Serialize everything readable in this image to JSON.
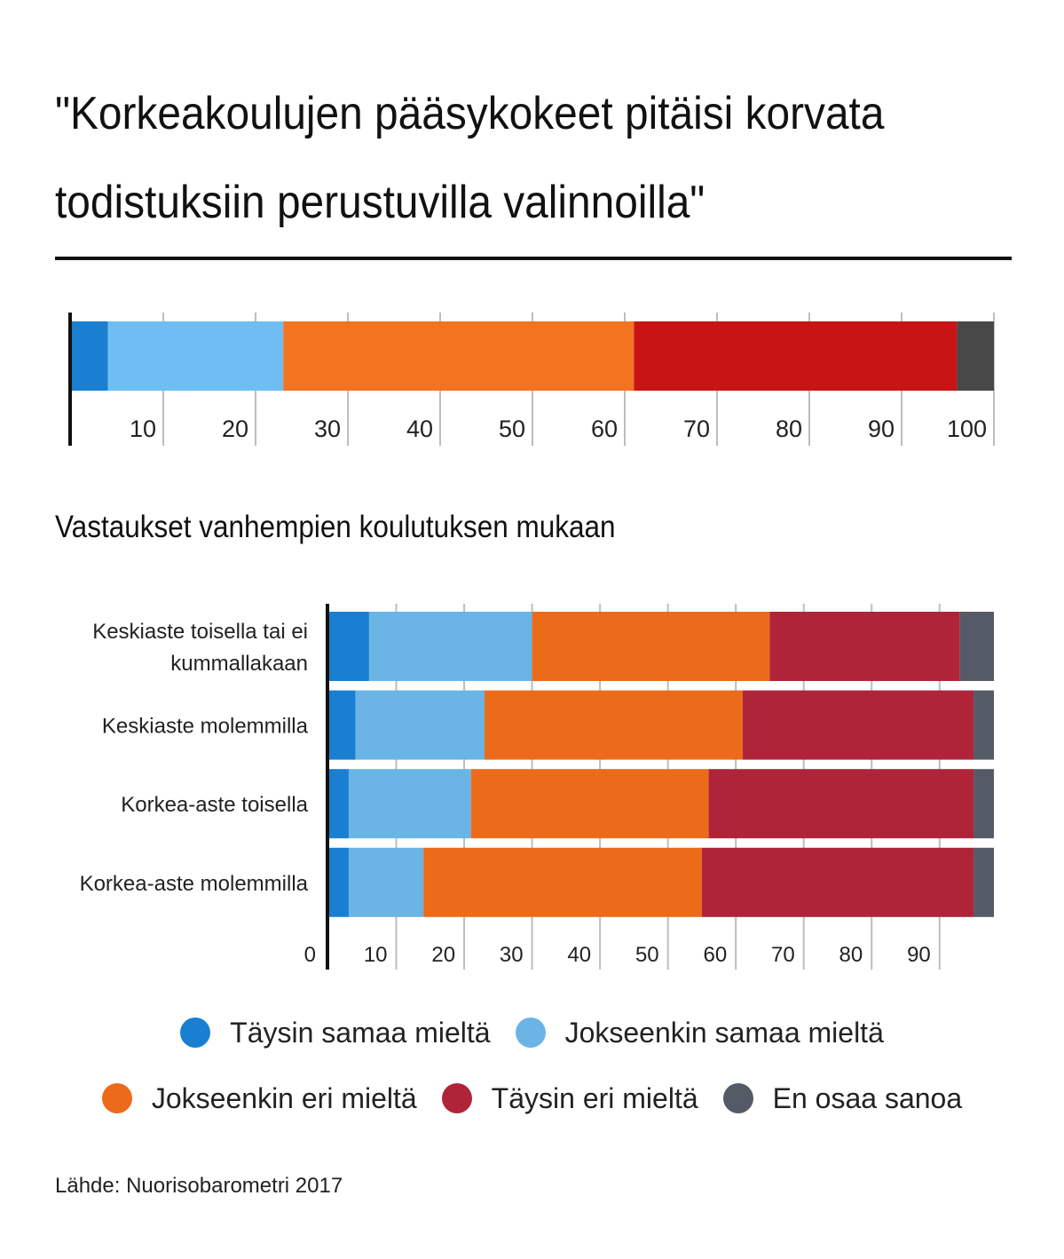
{
  "title": "\"Korkeakoulujen pääsykokeet pitäisi korvata todistuksiin perustuvilla valinnoilla\"",
  "subtitle": "Vastaukset vanhempien koulutuksen mukaan",
  "source": "Lähde: Nuorisobarometri 2017",
  "legend": {
    "row1": [
      {
        "label": "Täysin samaa mieltä",
        "color": "#1a7fd0"
      },
      {
        "label": "Jokseenkin samaa mieltä",
        "color": "#6ab4e6"
      }
    ],
    "row2": [
      {
        "label": "Jokseenkin eri mieltä",
        "color": "#ec6b1b"
      },
      {
        "label": "Täysin eri mieltä",
        "color": "#b0243a"
      },
      {
        "label": "En osaa sanoa",
        "color": "#555b66"
      }
    ]
  },
  "chart_data": [
    {
      "type": "bar",
      "orientation": "horizontal",
      "stacked": true,
      "categories": [
        ""
      ],
      "series": [
        {
          "name": "Täysin samaa mieltä",
          "values": [
            4
          ],
          "color": "#1a7fd0"
        },
        {
          "name": "Jokseenkin samaa mieltä",
          "values": [
            19
          ],
          "color": "#6ebef3"
        },
        {
          "name": "Jokseenkin eri mieltä",
          "values": [
            38
          ],
          "color": "#f37320"
        },
        {
          "name": "Täysin eri mieltä",
          "values": [
            35
          ],
          "color": "#c81415"
        },
        {
          "name": "En osaa sanoa",
          "values": [
            4
          ],
          "color": "#484848"
        }
      ],
      "xlim": [
        0,
        100
      ],
      "xticks": [
        10,
        20,
        30,
        40,
        50,
        60,
        70,
        80,
        90,
        100
      ],
      "grid": true
    },
    {
      "type": "bar",
      "orientation": "horizontal",
      "stacked": true,
      "categories": [
        "Keskiaste toisella tai ei kummallakaan",
        "Keskiaste molemmilla",
        "Korkea-aste toisella",
        "Korkea-aste molemmilla"
      ],
      "category_lines": [
        [
          "Keskiaste toisella tai ei",
          "kummallakaan"
        ],
        [
          "Keskiaste molemmilla"
        ],
        [
          "Korkea-aste toisella"
        ],
        [
          "Korkea-aste molemmilla"
        ]
      ],
      "series": [
        {
          "name": "Täysin samaa mieltä",
          "values": [
            6,
            4,
            3,
            3
          ],
          "color": "#1a7fd0"
        },
        {
          "name": "Jokseenkin samaa mieltä",
          "values": [
            24,
            19,
            18,
            11
          ],
          "color": "#6ab4e6"
        },
        {
          "name": "Jokseenkin eri mieltä",
          "values": [
            35,
            38,
            35,
            41
          ],
          "color": "#ec6b1b"
        },
        {
          "name": "Täysin eri mieltä",
          "values": [
            28,
            34,
            39,
            40
          ],
          "color": "#b0243a"
        },
        {
          "name": "En osaa sanoa",
          "values": [
            5,
            3,
            3,
            3
          ],
          "color": "#555b66"
        }
      ],
      "xlim": [
        0,
        98
      ],
      "xticks": [
        0,
        10,
        20,
        30,
        40,
        50,
        60,
        70,
        80,
        90
      ],
      "grid": true
    }
  ]
}
